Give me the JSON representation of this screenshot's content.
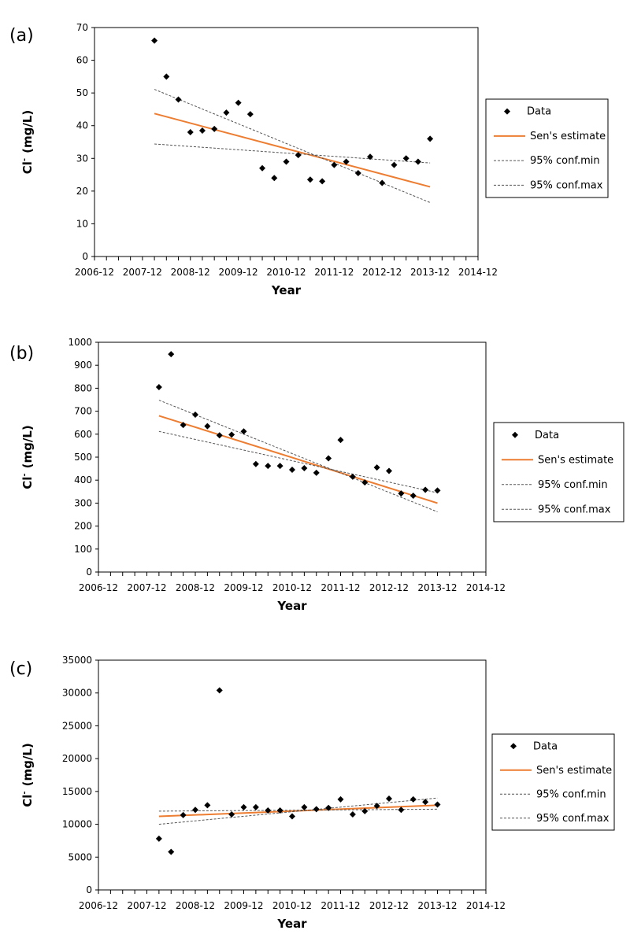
{
  "chart_data": [
    {
      "panel_label": "(a)",
      "type": "scatter",
      "xlabel": "Year",
      "ylabel_main": "Cl",
      "ylabel_sup": "-",
      "ylabel_unit": "(mg/L)",
      "ylim": [
        0,
        70
      ],
      "ystep": 10,
      "y_ticks": [
        "0",
        "10",
        "20",
        "30",
        "40",
        "50",
        "60",
        "70"
      ],
      "xlim": [
        0,
        8
      ],
      "x_ticks": [
        "2006-12",
        "2007-12",
        "2008-12",
        "2009-12",
        "2010-12",
        "2011-12",
        "2012-12",
        "2013-12",
        "2014-12"
      ],
      "x": [
        1.25,
        1.5,
        1.75,
        2.0,
        2.25,
        2.5,
        2.75,
        3.0,
        3.25,
        3.5,
        3.75,
        4.0,
        4.25,
        4.5,
        4.75,
        5.0,
        5.25,
        5.5,
        5.75,
        6.0,
        6.25,
        6.5,
        6.75,
        7.0
      ],
      "y": [
        66,
        55,
        48,
        38,
        38.5,
        39,
        44,
        47,
        43.5,
        27,
        24,
        29,
        31,
        23.5,
        23,
        28,
        29,
        25.5,
        30.5,
        22.5,
        28,
        30,
        29,
        36
      ],
      "lines": [
        {
          "name": "Sen's estimate",
          "style": "solid",
          "color": "#ED7D31",
          "x": [
            1.25,
            7.0
          ],
          "y": [
            43.7,
            21.3
          ]
        },
        {
          "name": "95% conf.min",
          "style": "dotted",
          "color": "#555555",
          "x": [
            1.25,
            7.0
          ],
          "y": [
            34.4,
            28.6
          ]
        },
        {
          "name": "95% conf.max",
          "style": "dotted",
          "color": "#555555",
          "x": [
            1.25,
            7.0
          ],
          "y": [
            51.1,
            16.5
          ]
        }
      ],
      "legend": {
        "data": "Data",
        "sen": "Sen's estimate",
        "min": "95% conf.min",
        "max": "95% conf.max",
        "position": "right"
      }
    },
    {
      "panel_label": "(b)",
      "type": "scatter",
      "xlabel": "Year",
      "ylabel_main": "Cl",
      "ylabel_sup": "-",
      "ylabel_unit": "(mg/L)",
      "ylim": [
        0,
        1000
      ],
      "ystep": 100,
      "y_ticks": [
        "0",
        "100",
        "200",
        "300",
        "400",
        "500",
        "600",
        "700",
        "800",
        "900",
        "1000"
      ],
      "xlim": [
        0,
        8
      ],
      "x_ticks": [
        "2006-12",
        "2007-12",
        "2008-12",
        "2009-12",
        "2010-12",
        "2011-12",
        "2012-12",
        "2013-12",
        "2014-12"
      ],
      "x": [
        1.25,
        1.5,
        1.75,
        2.0,
        2.25,
        2.5,
        2.75,
        3.0,
        3.25,
        3.5,
        3.75,
        4.0,
        4.25,
        4.5,
        4.75,
        5.0,
        5.25,
        5.5,
        5.75,
        6.0,
        6.25,
        6.5,
        6.75,
        7.0
      ],
      "y": [
        805,
        948,
        640,
        685,
        635,
        595,
        598,
        612,
        470,
        462,
        462,
        445,
        452,
        432,
        495,
        575,
        415,
        390,
        455,
        440,
        342,
        332,
        358,
        355
      ],
      "lines": [
        {
          "name": "Sen's estimate",
          "style": "solid",
          "color": "#ED7D31",
          "x": [
            1.25,
            7.0
          ],
          "y": [
            680,
            300
          ]
        },
        {
          "name": "95% conf.min",
          "style": "dotted",
          "color": "#555555",
          "x": [
            1.25,
            7.0
          ],
          "y": [
            612,
            345
          ]
        },
        {
          "name": "95% conf.max",
          "style": "dotted",
          "color": "#555555",
          "x": [
            1.25,
            7.0
          ],
          "y": [
            748,
            262
          ]
        }
      ],
      "legend": {
        "data": "Data",
        "sen": "Sen's estimate",
        "min": "95% conf.min",
        "max": "95% conf.max",
        "position": "right"
      }
    },
    {
      "panel_label": "(c)",
      "type": "scatter",
      "xlabel": "Year",
      "ylabel_main": "Cl",
      "ylabel_sup": "-",
      "ylabel_unit": "(mg/L)",
      "ylim": [
        0,
        35000
      ],
      "ystep": 5000,
      "y_ticks": [
        "0",
        "5000",
        "10000",
        "15000",
        "20000",
        "25000",
        "30000",
        "35000"
      ],
      "xlim": [
        0,
        8
      ],
      "x_ticks": [
        "2006-12",
        "2007-12",
        "2008-12",
        "2009-12",
        "2010-12",
        "2011-12",
        "2012-12",
        "2013-12",
        "2014-12"
      ],
      "x": [
        1.25,
        1.5,
        1.75,
        2.0,
        2.25,
        2.5,
        2.75,
        3.0,
        3.25,
        3.5,
        3.75,
        4.0,
        4.25,
        4.5,
        4.75,
        5.0,
        5.25,
        5.5,
        5.75,
        6.0,
        6.25,
        6.5,
        6.75,
        7.0
      ],
      "y": [
        7800,
        5800,
        11400,
        12200,
        12900,
        30400,
        11500,
        12600,
        12600,
        12100,
        12100,
        11200,
        12600,
        12300,
        12500,
        13800,
        11500,
        12000,
        12800,
        13900,
        12200,
        13800,
        13400,
        13000
      ],
      "lines": [
        {
          "name": "Sen's estimate",
          "style": "solid",
          "color": "#ED7D31",
          "x": [
            1.25,
            7.0
          ],
          "y": [
            11200,
            12900
          ]
        },
        {
          "name": "95% conf.min",
          "style": "dotted",
          "color": "#555555",
          "x": [
            1.25,
            7.0
          ],
          "y": [
            12000,
            12300
          ]
        },
        {
          "name": "95% conf.max",
          "style": "dotted",
          "color": "#555555",
          "x": [
            1.25,
            7.0
          ],
          "y": [
            10000,
            14000
          ]
        }
      ],
      "legend": {
        "data": "Data",
        "sen": "Sen's estimate",
        "min": "95% conf.min",
        "max": "95% conf.max",
        "position": "right"
      }
    }
  ]
}
